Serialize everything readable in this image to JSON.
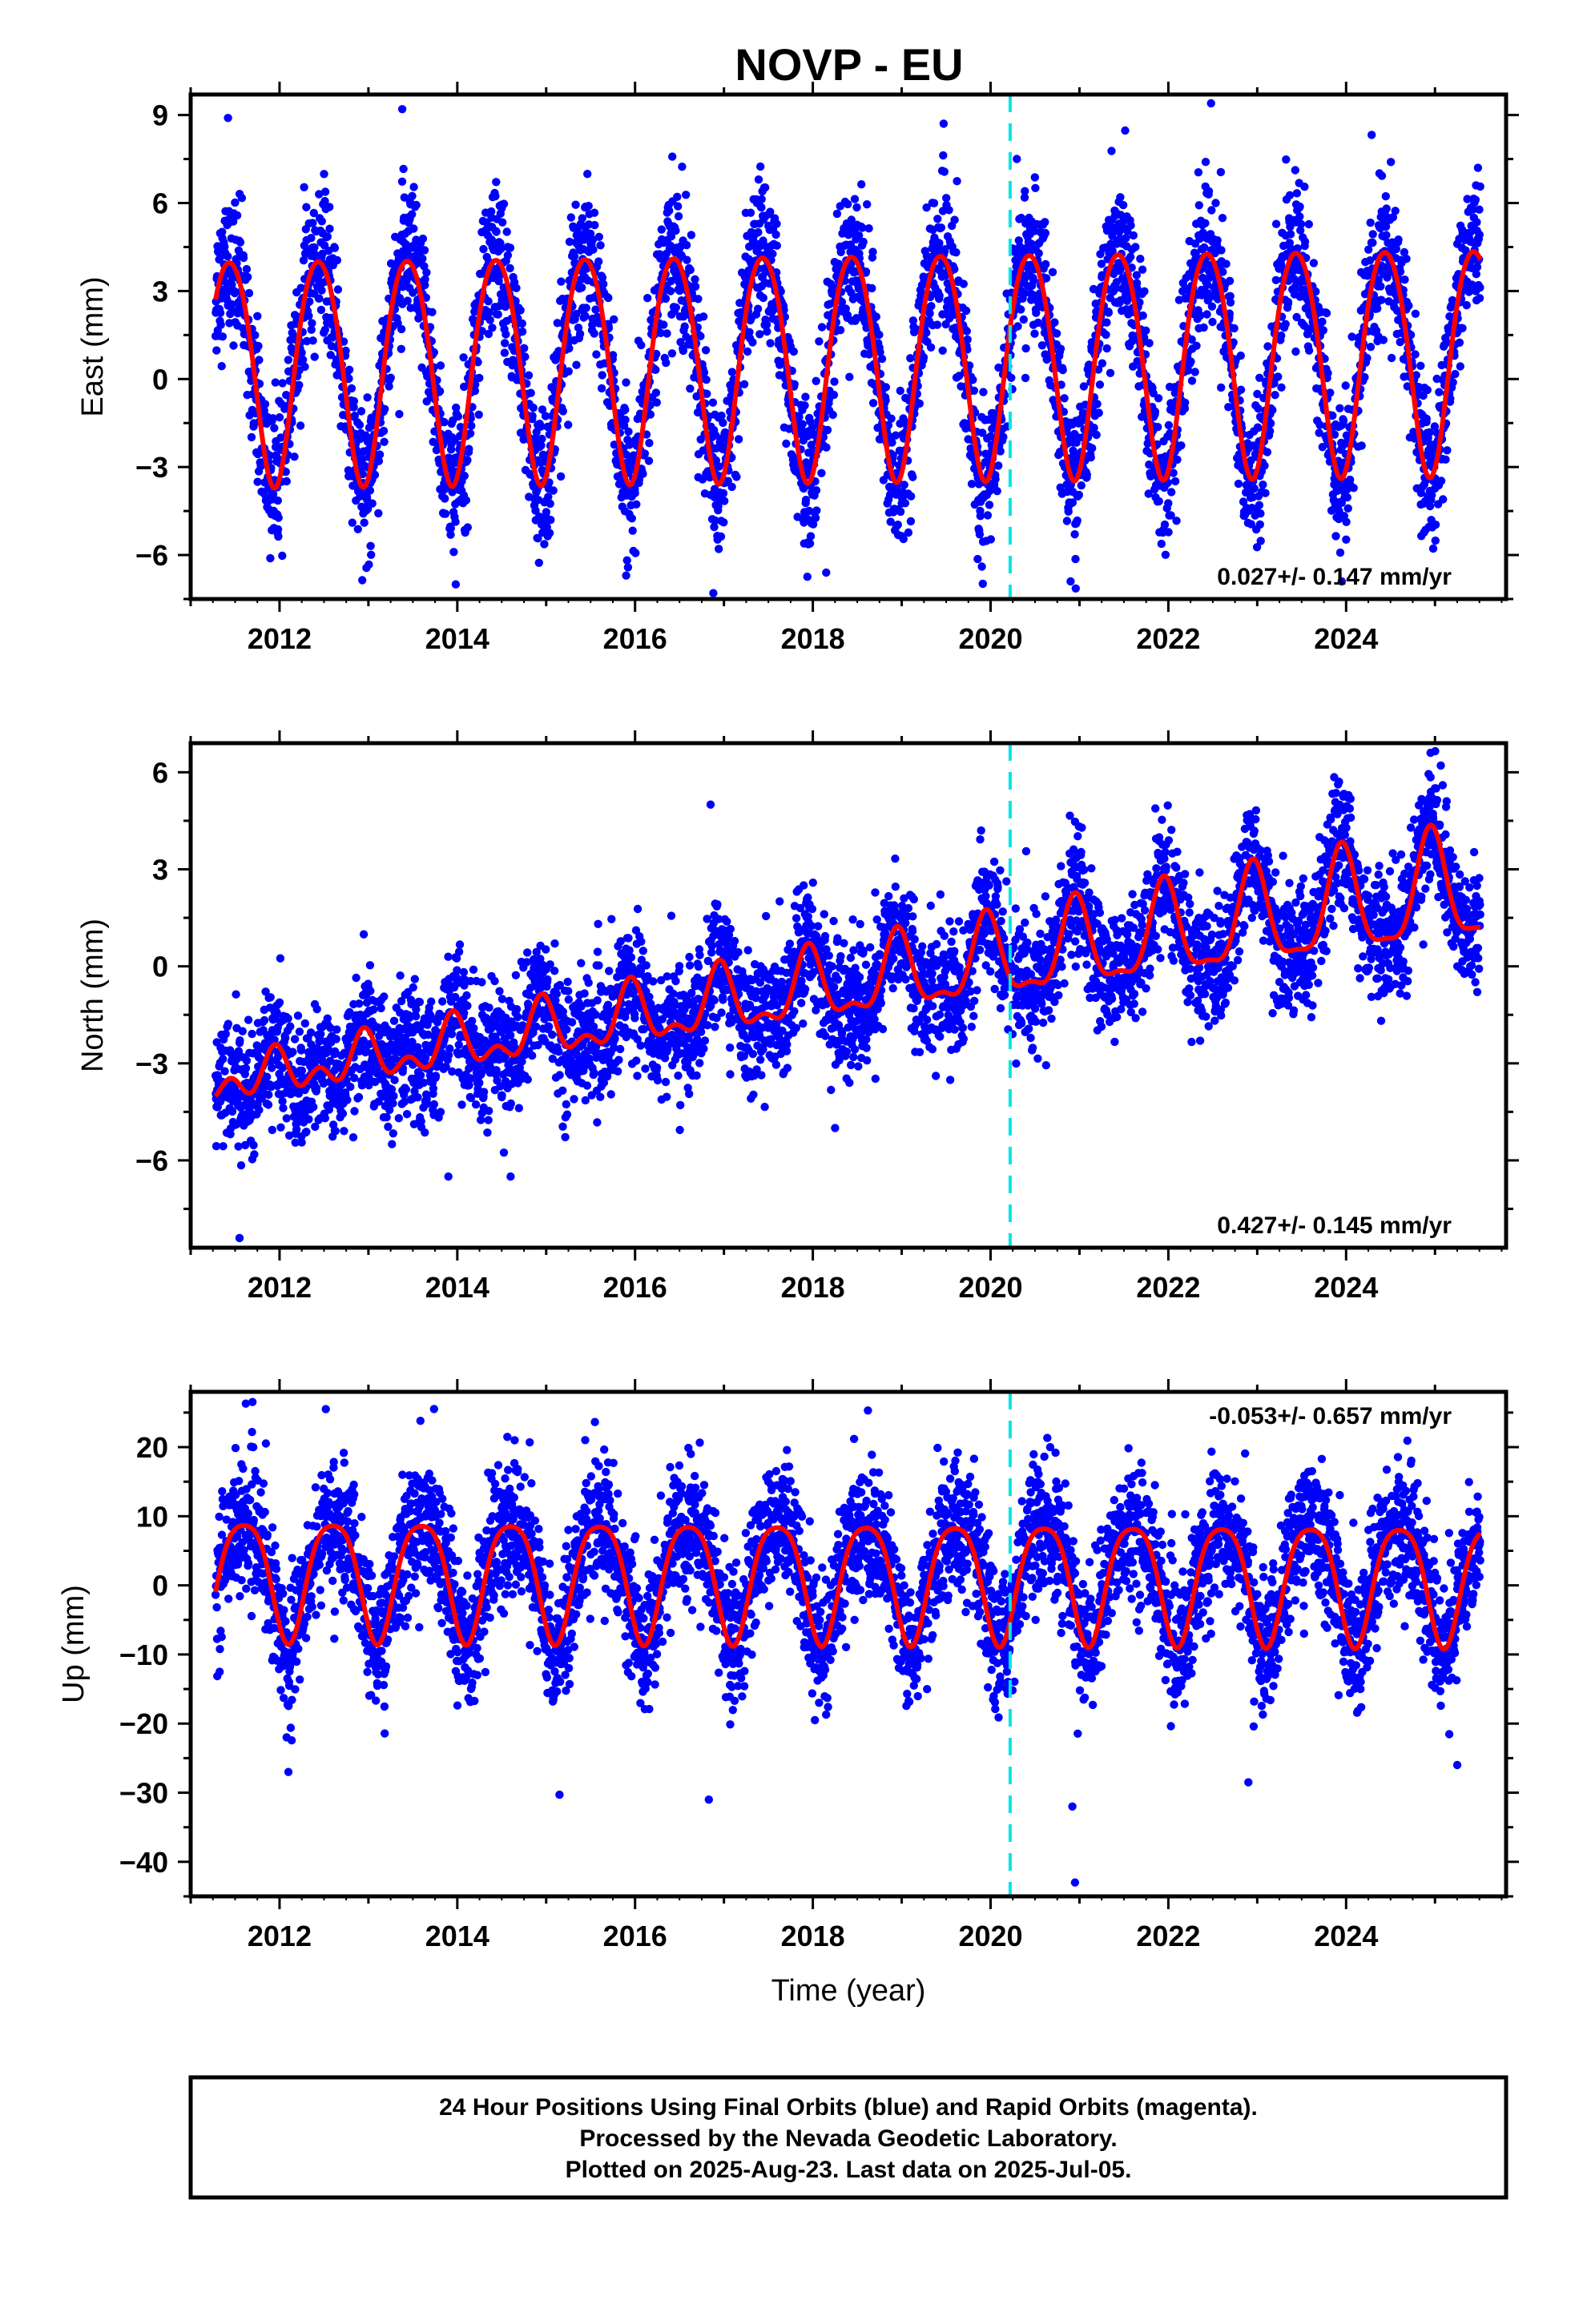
{
  "title": "NOVP - EU",
  "footer": {
    "lines": [
      "24 Hour Positions Using Final Orbits (blue) and Rapid Orbits (magenta).",
      "Processed by the Nevada Geodetic Laboratory.",
      "Plotted on 2025-Aug-23. Last data on 2025-Jul-05."
    ]
  },
  "colors": {
    "final_orbits": "#0000ff",
    "model_fit": "#ff0000",
    "event_line": "#00e5e5",
    "frame": "#000000"
  },
  "chart_data": [
    {
      "type": "scatter",
      "component": "East",
      "ylabel": "East (mm)",
      "xlabel": "",
      "xlim": [
        2011.0,
        2025.8
      ],
      "ylim": [
        -7.5,
        9.7
      ],
      "xticks": [
        2012,
        2014,
        2016,
        2018,
        2020,
        2022,
        2024
      ],
      "yticks": [
        -6,
        -3,
        0,
        3,
        6,
        9
      ],
      "rate_label": "0.027+/- 0.147 mm/yr",
      "rate_position": "bottom-right",
      "data_start": 2011.28,
      "data_end": 2025.51,
      "event_line_x": 2020.22,
      "model": {
        "offset": 0.65,
        "trend": 0.027,
        "ref_epoch": 2018.4,
        "annual_amp": 3.85,
        "annual_phase_year": 0.44,
        "semi_amp": 0.35,
        "semi_phase_year": 0.2
      },
      "scatter_sd": 1.2,
      "outliers": [
        [
          2011.42,
          8.9
        ],
        [
          2013.38,
          9.2
        ],
        [
          2022.48,
          9.4
        ],
        [
          2016.88,
          -7.3
        ],
        [
          2018.15,
          -6.6
        ],
        [
          2023.95,
          -6.9
        ],
        [
          2015.9,
          -6.7
        ],
        [
          2020.9,
          -6.9
        ]
      ]
    },
    {
      "type": "scatter",
      "component": "North",
      "ylabel": "North (mm)",
      "xlabel": "",
      "xlim": [
        2011.0,
        2025.8
      ],
      "ylim": [
        -8.7,
        6.9
      ],
      "xticks": [
        2012,
        2014,
        2016,
        2018,
        2020,
        2022,
        2024
      ],
      "yticks": [
        -6,
        -3,
        0,
        3,
        6
      ],
      "rate_label": "0.427+/- 0.145 mm/yr",
      "rate_position": "bottom-right",
      "data_start": 2011.28,
      "data_end": 2025.51,
      "event_line_x": 2020.22,
      "model": {
        "offset": -0.55,
        "trend": 0.427,
        "ref_epoch": 2018.4,
        "annual_amp": 1.05,
        "annual_phase_year": 0.95,
        "semi_amp": 0.45,
        "semi_phase_year": 0.45,
        "amp_growth": 0.09
      },
      "scatter_sd": 0.95,
      "outliers": [
        [
          2011.55,
          -8.4
        ],
        [
          2016.85,
          5.0
        ],
        [
          2018.25,
          -5.0
        ],
        [
          2024.95,
          6.6
        ],
        [
          2013.9,
          -6.5
        ],
        [
          2014.6,
          -6.5
        ]
      ]
    },
    {
      "type": "scatter",
      "component": "Up",
      "ylabel": "Up (mm)",
      "xlabel": "Time (year)",
      "xlim": [
        2011.0,
        2025.8
      ],
      "ylim": [
        -45,
        28
      ],
      "xticks": [
        2012,
        2014,
        2016,
        2018,
        2020,
        2022,
        2024
      ],
      "yticks": [
        -40,
        -30,
        -20,
        -10,
        0,
        10,
        20
      ],
      "rate_label": "-0.053+/- 0.657 mm/yr",
      "rate_position": "top-right",
      "data_start": 2011.28,
      "data_end": 2025.51,
      "event_line_x": 2020.22,
      "model": {
        "offset": 1.3,
        "trend": -0.053,
        "ref_epoch": 2018.4,
        "annual_amp": 8.6,
        "annual_phase_year": 0.6,
        "semi_amp": 1.6,
        "semi_phase_year": 0.35
      },
      "scatter_sd": 4.8,
      "outliers": [
        [
          2011.62,
          26.3
        ],
        [
          2018.62,
          25.3
        ],
        [
          2020.95,
          -43.0
        ],
        [
          2020.92,
          -32.0
        ],
        [
          2016.83,
          -31.0
        ],
        [
          2015.15,
          -30.3
        ],
        [
          2012.1,
          -27.0
        ],
        [
          2022.9,
          -28.5
        ],
        [
          2025.25,
          -26.0
        ]
      ]
    }
  ]
}
